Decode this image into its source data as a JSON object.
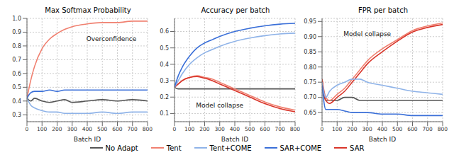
{
  "chart_data": [
    {
      "type": "line",
      "title": "Max Softmax Probability",
      "x_label": "Batch ID",
      "x": [
        0,
        25,
        50,
        100,
        150,
        200,
        250,
        300,
        400,
        500,
        600,
        700,
        800
      ],
      "xlim": [
        0,
        800
      ],
      "xticks": [
        0,
        100,
        200,
        300,
        400,
        500,
        600,
        700,
        800
      ],
      "ylim": [
        0.25,
        1.0
      ],
      "yticks": [
        0.3,
        0.4,
        0.5,
        0.6,
        0.7,
        0.8,
        0.9,
        {
          "value": 1.0,
          "label": "1.0"
        }
      ],
      "grid": true,
      "legend": "bottom",
      "series": [
        {
          "name": "No Adapt",
          "color": "#555555",
          "values": [
            0.42,
            0.4,
            0.42,
            0.4,
            0.39,
            0.4,
            0.41,
            0.39,
            0.4,
            0.41,
            0.4,
            0.41,
            0.4
          ]
        },
        {
          "name": "Tent",
          "color": "#f08070",
          "values": [
            0.42,
            0.55,
            0.65,
            0.78,
            0.85,
            0.89,
            0.92,
            0.94,
            0.96,
            0.97,
            0.97,
            0.98,
            0.98
          ]
        },
        {
          "name": "Tent+COME",
          "color": "#8fb3e8",
          "values": [
            0.42,
            0.37,
            0.35,
            0.33,
            0.32,
            0.32,
            0.31,
            0.31,
            0.31,
            0.32,
            0.31,
            0.32,
            0.32
          ]
        },
        {
          "name": "SAR+COME",
          "color": "#3a6fd8",
          "values": [
            0.42,
            0.46,
            0.47,
            0.47,
            0.48,
            0.47,
            0.48,
            0.48,
            0.48,
            0.48,
            0.48,
            0.48,
            0.48
          ]
        }
      ],
      "annotations": [
        {
          "text": "Overconfidence",
          "x": 560,
          "y": 0.85
        }
      ]
    },
    {
      "type": "line",
      "title": "Accuracy per batch",
      "x_label": "Batch ID",
      "x": [
        0,
        25,
        50,
        100,
        150,
        200,
        250,
        300,
        400,
        500,
        600,
        700,
        800
      ],
      "xlim": [
        0,
        800
      ],
      "xticks": [
        0,
        100,
        200,
        300,
        400,
        500,
        600,
        700,
        800
      ],
      "ylim": [
        0.05,
        0.68
      ],
      "yticks": [
        0.1,
        0.2,
        0.3,
        0.4,
        0.5,
        0.6
      ],
      "grid": true,
      "legend": "bottom",
      "series": [
        {
          "name": "No Adapt",
          "color": "#555555",
          "values": [
            0.26,
            0.25,
            0.25,
            0.25,
            0.25,
            0.25,
            0.25,
            0.25,
            0.25,
            0.25,
            0.25,
            0.25,
            0.25
          ]
        },
        {
          "name": "Tent",
          "color": "#f08070",
          "values": [
            0.26,
            0.28,
            0.3,
            0.32,
            0.33,
            0.32,
            0.31,
            0.29,
            0.25,
            0.21,
            0.17,
            0.14,
            0.12
          ]
        },
        {
          "name": "SAR",
          "color": "#d9352a",
          "values": [
            0.26,
            0.28,
            0.3,
            0.32,
            0.325,
            0.315,
            0.3,
            0.28,
            0.24,
            0.2,
            0.16,
            0.13,
            0.11
          ]
        },
        {
          "name": "Tent+COME",
          "color": "#8fb3e8",
          "values": [
            0.26,
            0.3,
            0.34,
            0.4,
            0.44,
            0.47,
            0.49,
            0.51,
            0.54,
            0.56,
            0.575,
            0.585,
            0.59
          ]
        },
        {
          "name": "SAR+COME",
          "color": "#3a6fd8",
          "values": [
            0.26,
            0.33,
            0.38,
            0.45,
            0.5,
            0.53,
            0.55,
            0.57,
            0.6,
            0.62,
            0.635,
            0.645,
            0.65
          ]
        }
      ],
      "annotations": [
        {
          "text": "Model collapse",
          "x": 300,
          "y": 0.15
        }
      ]
    },
    {
      "type": "line",
      "title": "FPR per batch",
      "x_label": "Batch ID",
      "x": [
        0,
        25,
        50,
        100,
        150,
        200,
        250,
        300,
        400,
        500,
        600,
        700,
        800
      ],
      "xlim": [
        0,
        800
      ],
      "xticks": [
        0,
        100,
        200,
        300,
        400,
        500,
        600,
        700,
        800
      ],
      "ylim": [
        0.62,
        0.96
      ],
      "yticks": [
        0.65,
        {
          "value": 0.7,
          "label": "0.70"
        },
        0.75,
        {
          "value": 0.8,
          "label": "0.80"
        },
        0.85,
        {
          "value": 0.9,
          "label": "0.90"
        },
        0.95
      ],
      "grid": true,
      "legend": "bottom",
      "series": [
        {
          "name": "No Adapt",
          "color": "#555555",
          "values": [
            0.75,
            0.69,
            0.69,
            0.69,
            0.7,
            0.7,
            0.69,
            0.69,
            0.69,
            0.69,
            0.69,
            0.69,
            0.69
          ]
        },
        {
          "name": "Tent",
          "color": "#f08070",
          "values": [
            0.76,
            0.7,
            0.69,
            0.71,
            0.73,
            0.76,
            0.79,
            0.82,
            0.86,
            0.89,
            0.92,
            0.935,
            0.945
          ]
        },
        {
          "name": "SAR",
          "color": "#d9352a",
          "values": [
            0.76,
            0.69,
            0.68,
            0.7,
            0.72,
            0.75,
            0.78,
            0.81,
            0.85,
            0.885,
            0.915,
            0.93,
            0.94
          ]
        },
        {
          "name": "Tent+COME",
          "color": "#8fb3e8",
          "values": [
            0.75,
            0.7,
            0.72,
            0.74,
            0.75,
            0.76,
            0.76,
            0.75,
            0.74,
            0.73,
            0.72,
            0.715,
            0.71
          ]
        },
        {
          "name": "SAR+COME",
          "color": "#3a6fd8",
          "values": [
            0.74,
            0.66,
            0.66,
            0.66,
            0.655,
            0.65,
            0.65,
            0.65,
            0.645,
            0.645,
            0.64,
            0.64,
            0.64
          ]
        }
      ],
      "annotations": [
        {
          "text": "Model collapse",
          "x": 300,
          "y": 0.91
        }
      ]
    }
  ]
}
